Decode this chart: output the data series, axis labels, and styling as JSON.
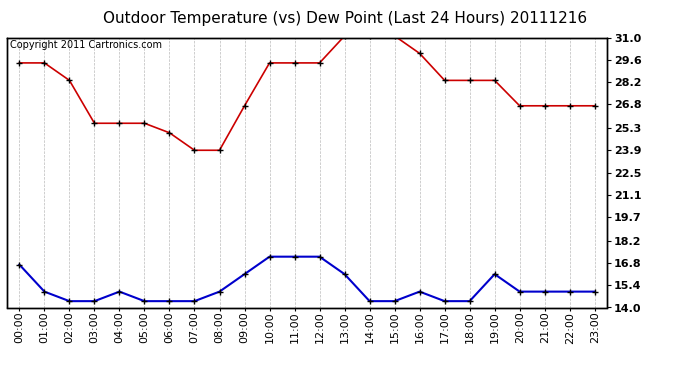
{
  "title": "Outdoor Temperature (vs) Dew Point (Last 24 Hours) 20111216",
  "copyright_text": "Copyright 2011 Cartronics.com",
  "x_labels": [
    "00:00",
    "01:00",
    "02:00",
    "03:00",
    "04:00",
    "05:00",
    "06:00",
    "07:00",
    "08:00",
    "09:00",
    "10:00",
    "11:00",
    "12:00",
    "13:00",
    "14:00",
    "15:00",
    "16:00",
    "17:00",
    "18:00",
    "19:00",
    "20:00",
    "21:00",
    "22:00",
    "23:00"
  ],
  "temp_values": [
    29.4,
    29.4,
    28.3,
    25.6,
    25.6,
    25.6,
    25.0,
    23.9,
    23.9,
    26.7,
    29.4,
    29.4,
    29.4,
    31.1,
    31.1,
    31.1,
    30.0,
    28.3,
    28.3,
    28.3,
    26.7,
    26.7,
    26.7,
    26.7
  ],
  "dew_values": [
    16.7,
    15.0,
    14.4,
    14.4,
    15.0,
    14.4,
    14.4,
    14.4,
    15.0,
    16.1,
    17.2,
    17.2,
    17.2,
    16.1,
    14.4,
    14.4,
    15.0,
    14.4,
    14.4,
    16.1,
    15.0,
    15.0,
    15.0,
    15.0
  ],
  "temp_color": "#cc0000",
  "dew_color": "#0000cc",
  "ylim_min": 14.0,
  "ylim_max": 31.0,
  "yticks": [
    14.0,
    15.4,
    16.8,
    18.2,
    19.7,
    21.1,
    22.5,
    23.9,
    25.3,
    26.8,
    28.2,
    29.6,
    31.0
  ],
  "ytick_labels": [
    "14.0",
    "15.4",
    "16.8",
    "18.2",
    "19.7",
    "21.1",
    "22.5",
    "23.9",
    "25.3",
    "26.8",
    "28.2",
    "29.6",
    "31.0"
  ],
  "background_color": "#ffffff",
  "plot_bg_color": "#ffffff",
  "grid_color": "#bbbbbb",
  "title_fontsize": 11,
  "copyright_fontsize": 7,
  "tick_fontsize": 8,
  "border_color": "#000000"
}
